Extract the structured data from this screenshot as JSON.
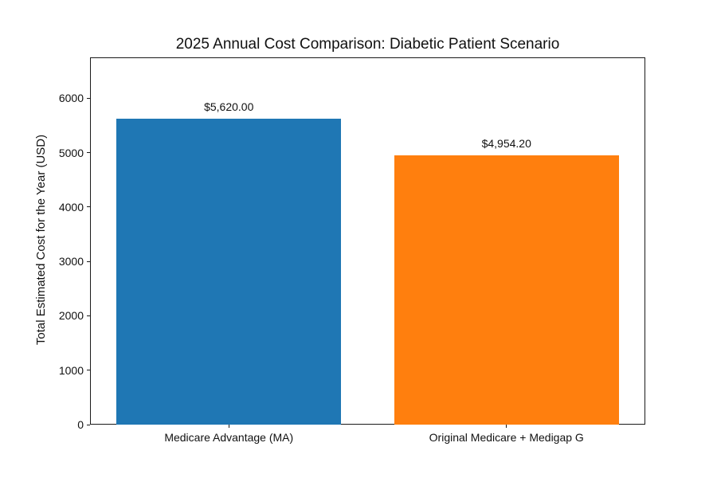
{
  "chart_data": {
    "type": "bar",
    "title": "2025 Annual Cost Comparison: Diabetic Patient Scenario",
    "xlabel": "",
    "ylabel": "Total Estimated Cost for the Year (USD)",
    "categories": [
      "Medicare Advantage (MA)",
      "Original Medicare + Medigap G"
    ],
    "values": [
      5620.0,
      4954.2
    ],
    "bar_labels": [
      "$5,620.00",
      "$4,954.20"
    ],
    "bar_colors": [
      "#1f77b4",
      "#ff7f0e"
    ],
    "yticks": [
      0,
      1000,
      2000,
      3000,
      4000,
      5000,
      6000
    ],
    "ylim": [
      0,
      6750
    ],
    "grid": false,
    "legend_position": "none",
    "background_color": "#ffffff",
    "spine_color": "#1a1a1a"
  }
}
